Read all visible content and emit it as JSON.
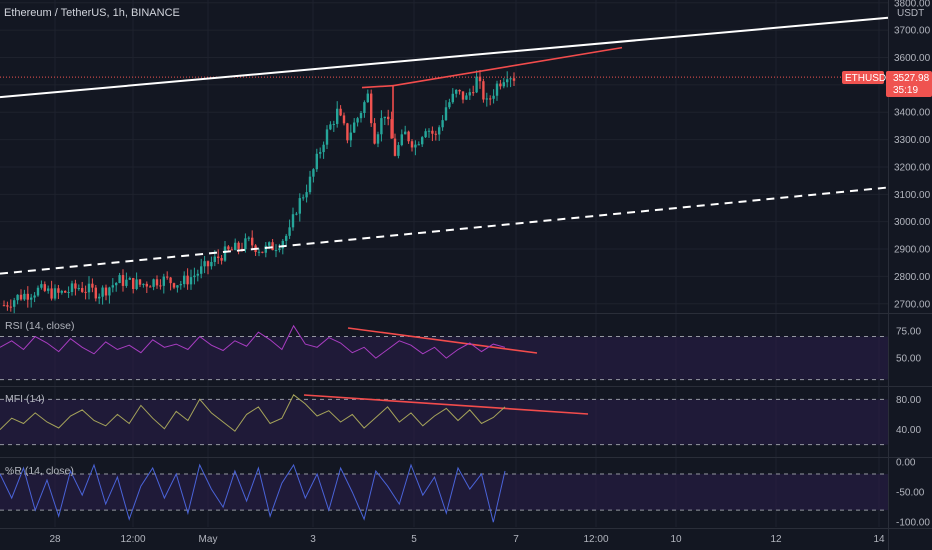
{
  "header": {
    "title": "Ethereum / TetherUS, 1h, BINANCE",
    "currency": "USDT"
  },
  "price_tag": {
    "symbol": "ETHUSDT",
    "price": "3527.98",
    "countdown": "35:19",
    "color": "#ef5350"
  },
  "colors": {
    "background": "#131722",
    "up": "#26a69a",
    "down": "#ef5350",
    "trendline_white": "#ffffff",
    "trendline_red": "#f24c4c",
    "rsi": "#a83dc1",
    "mfi": "#a5a35a",
    "wr": "#4a63d8",
    "band_fill": "#2a1e4a"
  },
  "main": {
    "y_ticks": [
      "3800.00",
      "3700.00",
      "3600.00",
      "3500.00",
      "3400.00",
      "3300.00",
      "3200.00",
      "3100.00",
      "3000.00",
      "2900.00",
      "2800.00",
      "2700.00"
    ],
    "y_range": [
      2670,
      3810
    ]
  },
  "panes": {
    "rsi": {
      "title": "RSI (14, close)",
      "ticks": [
        "75.00",
        "50.00"
      ],
      "range": [
        25,
        90
      ],
      "band": [
        30,
        70
      ]
    },
    "mfi": {
      "title": "MFI (14)",
      "ticks": [
        "80.00",
        "40.00"
      ],
      "range": [
        5,
        95
      ],
      "band": [
        20,
        80
      ]
    },
    "wr": {
      "title": "%R (14, close)",
      "ticks": [
        "0.00",
        "-50.00",
        "-100.00"
      ],
      "range": [
        -108,
        5
      ],
      "band": [
        -80,
        -20
      ]
    }
  },
  "x_axis": {
    "labels": [
      "28",
      "12:00",
      "May",
      "3",
      "5",
      "7",
      "12:00",
      "10",
      "12",
      "14"
    ]
  },
  "chart_data": [
    {
      "type": "candlestick",
      "title": "Ethereum / TetherUS, 1h, BINANCE",
      "ylabel": "USDT",
      "ylim": [
        2670,
        3810
      ],
      "x_ticks": [
        "28",
        "12:00",
        "May",
        "3",
        "5",
        "7",
        "12:00",
        "10",
        "12",
        "14"
      ],
      "anchors": [
        [
          0,
          2695
        ],
        [
          4,
          2725
        ],
        [
          10,
          2750
        ],
        [
          16,
          2735
        ],
        [
          22,
          2760
        ],
        [
          28,
          2740
        ],
        [
          34,
          2785
        ],
        [
          40,
          2770
        ],
        [
          46,
          2790
        ],
        [
          52,
          2775
        ],
        [
          56,
          2805
        ],
        [
          60,
          2840
        ],
        [
          64,
          2880
        ],
        [
          68,
          2900
        ],
        [
          72,
          2925
        ],
        [
          76,
          2895
        ],
        [
          80,
          2915
        ],
        [
          84,
          2960
        ],
        [
          86,
          3050
        ],
        [
          90,
          3150
        ],
        [
          94,
          3300
        ],
        [
          98,
          3400
        ],
        [
          101,
          3310
        ],
        [
          104,
          3380
        ],
        [
          107,
          3460
        ],
        [
          109,
          3310
        ],
        [
          112,
          3400
        ],
        [
          115,
          3250
        ],
        [
          118,
          3320
        ],
        [
          121,
          3280
        ],
        [
          124,
          3350
        ],
        [
          127,
          3310
        ],
        [
          130,
          3420
        ],
        [
          133,
          3470
        ],
        [
          136,
          3450
        ],
        [
          139,
          3520
        ],
        [
          142,
          3430
        ],
        [
          145,
          3500
        ],
        [
          148,
          3545
        ],
        [
          150,
          3528
        ]
      ],
      "current_price": 3527.98
    },
    {
      "type": "line",
      "title": "RSI (14, close)",
      "ylim": [
        25,
        90
      ],
      "series": [
        {
          "name": "RSI (14, close)",
          "values": [
            60,
            66,
            58,
            70,
            64,
            56,
            68,
            60,
            54,
            65,
            58,
            62,
            55,
            67,
            60,
            63,
            58,
            70,
            62,
            57,
            66,
            61,
            74,
            67,
            58,
            80,
            63,
            60,
            69,
            64,
            55,
            60,
            50,
            58,
            66,
            62,
            54,
            60,
            50,
            58,
            64,
            56,
            63,
            60
          ]
        }
      ]
    },
    {
      "type": "line",
      "title": "MFI (14)",
      "ylim": [
        5,
        95
      ],
      "series": [
        {
          "name": "MFI (14)",
          "values": [
            40,
            55,
            48,
            62,
            50,
            42,
            58,
            66,
            52,
            45,
            60,
            48,
            72,
            55,
            41,
            64,
            52,
            80,
            62,
            50,
            38,
            60,
            70,
            48,
            55,
            86,
            74,
            58,
            65,
            50,
            60,
            42,
            56,
            70,
            50,
            62,
            45,
            58,
            68,
            52,
            66,
            48,
            56,
            70
          ]
        }
      ]
    },
    {
      "type": "line",
      "title": "%R (14, close)",
      "ylim": [
        -108,
        5
      ],
      "series": [
        {
          "name": "%R (14, close)",
          "values": [
            -20,
            -60,
            -10,
            -80,
            -30,
            -90,
            -15,
            -55,
            -5,
            -70,
            -25,
            -95,
            -40,
            -10,
            -60,
            -20,
            -85,
            -5,
            -45,
            -75,
            -15,
            -65,
            -10,
            -90,
            -35,
            -5,
            -60,
            -20,
            -80,
            -10,
            -50,
            -95,
            -15,
            -40,
            -70,
            -5,
            -55,
            -25,
            -85,
            -10,
            -45,
            -20,
            -100,
            -15
          ]
        }
      ]
    }
  ]
}
